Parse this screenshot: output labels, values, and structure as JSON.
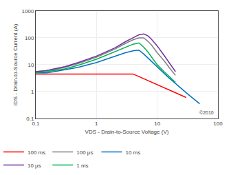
{
  "chart_data": {
    "type": "line",
    "xlabel": "VDS - Drain-to-Source Voltage (V)",
    "ylabel": "IDS - Drain-to-Source Current (A)",
    "log": true,
    "xlim": [
      0.1,
      100
    ],
    "ylim": [
      0.1,
      1000
    ],
    "xticks": [
      0.1,
      1,
      10,
      100
    ],
    "yticks": [
      0.1,
      1,
      10,
      100,
      1000
    ],
    "grid": true,
    "legend": "lower left",
    "annotations": [
      "©2010"
    ],
    "series": [
      {
        "name": "100 ms",
        "color": "#ff0000",
        "x": [
          0.1,
          0.12,
          0.15,
          0.2,
          0.3,
          0.5,
          1.0,
          2.0,
          3.0,
          4.0,
          5.0,
          6.0,
          7.0,
          10.0,
          15.0,
          20.0,
          30.0
        ],
        "values": [
          4.5,
          4.5,
          4.5,
          4.5,
          4.5,
          4.5,
          4.5,
          4.5,
          4.5,
          4.5,
          3.6,
          3.0,
          2.6,
          1.8,
          1.2,
          0.9,
          0.6
        ]
      },
      {
        "name": "100 μs",
        "color": "#808080",
        "x": [
          0.1,
          0.15,
          0.2,
          0.3,
          0.5,
          1.0,
          2.0,
          3.0,
          4.0,
          5.0,
          6.0,
          7.0,
          8.0,
          10.0,
          13.0,
          16.0,
          20.0
        ],
        "values": [
          5.5,
          6.0,
          6.5,
          8.0,
          11.0,
          19.0,
          38.0,
          62.0,
          85.0,
          100.0,
          100.0,
          75.0,
          55.0,
          28.0,
          14.0,
          7.5,
          4.0
        ]
      },
      {
        "name": "10 ms",
        "color": "#0070c0",
        "x": [
          0.1,
          0.15,
          0.2,
          0.3,
          0.5,
          1.0,
          2.0,
          3.0,
          4.0,
          5.0,
          6.0,
          7.0,
          8.0,
          10.0,
          15.0,
          20.0,
          30.0,
          50.0
        ],
        "values": [
          5.0,
          5.0,
          5.5,
          6.5,
          8.0,
          12.0,
          20.0,
          28.0,
          33.0,
          35.0,
          25.0,
          18.0,
          13.0,
          8.0,
          3.5,
          2.0,
          0.9,
          0.35
        ]
      },
      {
        "name": "10 μs",
        "color": "#7030a0",
        "x": [
          0.1,
          0.15,
          0.2,
          0.3,
          0.5,
          1.0,
          2.0,
          3.0,
          4.0,
          5.0,
          6.0,
          7.0,
          8.0,
          10.0,
          13.0,
          16.0,
          20.0
        ],
        "values": [
          5.5,
          6.0,
          7.0,
          8.5,
          12.0,
          21.0,
          42.0,
          72.0,
          100.0,
          130.0,
          140.0,
          120.0,
          90.0,
          50.0,
          22.0,
          11.0,
          5.5
        ]
      },
      {
        "name": "1 ms",
        "color": "#00b050",
        "x": [
          0.1,
          0.15,
          0.2,
          0.3,
          0.5,
          1.0,
          2.0,
          3.0,
          4.0,
          5.0,
          6.0,
          7.0,
          8.0,
          10.0,
          13.0,
          20.0
        ],
        "values": [
          5.0,
          5.5,
          6.0,
          7.0,
          9.5,
          16.0,
          30.0,
          45.0,
          58.0,
          65.0,
          45.0,
          30.0,
          20.0,
          10.0,
          5.5,
          2.2
        ]
      }
    ]
  }
}
